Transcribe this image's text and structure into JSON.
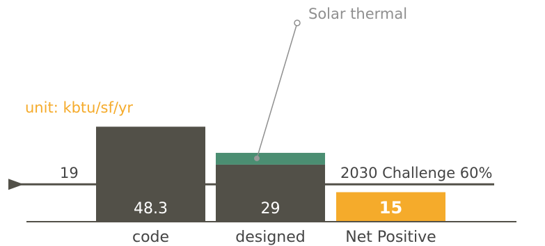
{
  "chart_data": {
    "type": "bar",
    "unit_label": "unit: kbtu/sf/yr",
    "categories": [
      "code",
      "designed",
      "Net Positive"
    ],
    "values": [
      48.3,
      29,
      15
    ],
    "value_labels": [
      "48.3",
      "29",
      "15"
    ],
    "stacked_segment": {
      "category": "designed",
      "value": 6,
      "annotation": "Solar thermal"
    },
    "reference_line": {
      "value": 19,
      "value_label": "19",
      "label": "2030 Challenge 60%"
    },
    "ylim": [
      0,
      50
    ]
  },
  "colors": {
    "bar": "#525048",
    "solar": "#4b8e72",
    "highlight": "#f5ab2b",
    "orange_text": "#f5ab2b",
    "gray_text": "#8f8f8f",
    "axis_text": "#444444",
    "line": "#525048"
  }
}
